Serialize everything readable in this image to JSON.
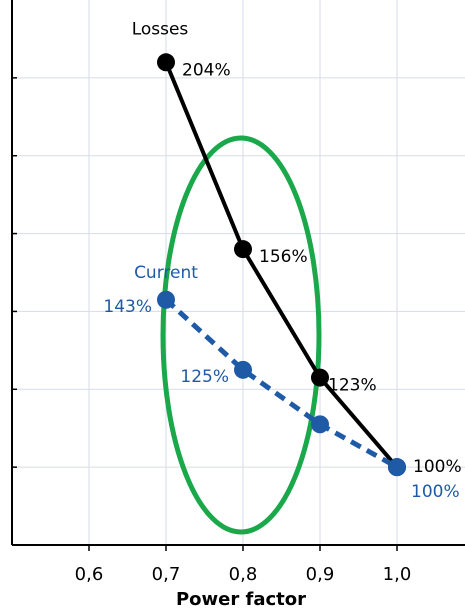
{
  "chart_data": {
    "type": "line",
    "x": [
      0.7,
      0.8,
      0.9,
      1.0
    ],
    "series": [
      {
        "name": "Losses",
        "color": "#000000",
        "values": [
          204,
          156,
          123,
          100
        ],
        "value_labels": [
          "204%",
          "156%",
          "123%",
          "100%"
        ],
        "dashed": false
      },
      {
        "name": "Current",
        "color": "#1f5aa6",
        "values": [
          143,
          125,
          111,
          100
        ],
        "value_labels": [
          "143%",
          "125%",
          null,
          "100%"
        ],
        "dashed": true
      }
    ],
    "xlabel": "Power factor",
    "xlim": [
      0.5,
      1.08
    ],
    "xticks": [
      {
        "value": 0.6,
        "label": "0,6"
      },
      {
        "value": 0.7,
        "label": "0,7"
      },
      {
        "value": 0.8,
        "label": "0,8"
      },
      {
        "value": 0.9,
        "label": "0,9"
      },
      {
        "value": 1.0,
        "label": "1,0"
      }
    ],
    "ylim": [
      80,
      220
    ],
    "yticks": [
      100,
      120,
      140,
      160,
      180,
      200
    ],
    "grid": true
  }
}
